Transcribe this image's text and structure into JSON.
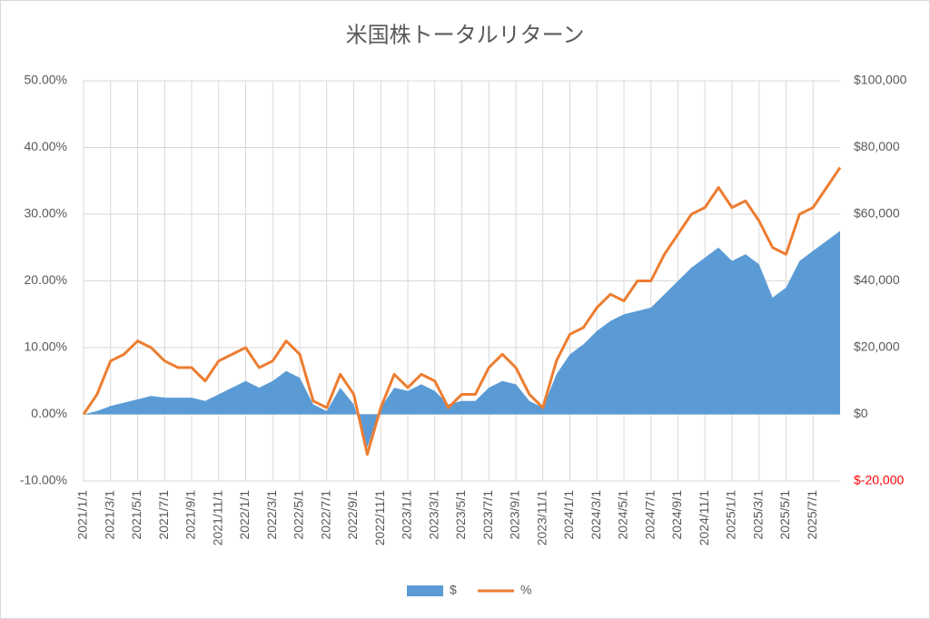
{
  "chart_data": {
    "type": "area_line",
    "title": "米国株トータルリターン",
    "categories": [
      "2021/1/1",
      null,
      "2021/3/1",
      null,
      "2021/5/1",
      null,
      "2021/7/1",
      null,
      "2021/9/1",
      null,
      "2021/11/1",
      null,
      "2022/1/1",
      null,
      "2022/3/1",
      null,
      "2022/5/1",
      null,
      "2022/7/1",
      null,
      "2022/9/1",
      null,
      "2022/11/1",
      null,
      "2023/1/1",
      null,
      "2023/3/1",
      null,
      "2023/5/1",
      null,
      "2023/7/1",
      null,
      "2023/9/1",
      null,
      "2023/11/1",
      null,
      "2024/1/1",
      null,
      "2024/3/1",
      null,
      "2024/5/1",
      null,
      "2024/7/1",
      null,
      "2024/9/1",
      null,
      "2024/11/1",
      null,
      "2025/1/1",
      null,
      "2025/3/1",
      null,
      "2025/5/1",
      null,
      "2025/7/1",
      null,
      null
    ],
    "series": [
      {
        "name": "$",
        "color": "#5b9bd5",
        "axis": "y2",
        "kind": "area",
        "values": [
          0,
          1000,
          2500,
          3500,
          4500,
          5500,
          5000,
          5000,
          5000,
          4000,
          6000,
          8000,
          10000,
          8000,
          10000,
          13000,
          11000,
          3000,
          1000,
          8000,
          3000,
          -10000,
          2000,
          8000,
          7000,
          9000,
          7000,
          3000,
          4000,
          4000,
          8000,
          10000,
          9000,
          4000,
          2000,
          12000,
          18000,
          21000,
          25000,
          28000,
          30000,
          31000,
          32000,
          36000,
          40000,
          44000,
          47000,
          50000,
          46000,
          48000,
          45000,
          35000,
          38000,
          46000,
          49000,
          52000,
          55000
        ]
      },
      {
        "name": "%",
        "color": "#ed7d31",
        "axis": "y",
        "kind": "line",
        "values": [
          0,
          3,
          8,
          9,
          11,
          10,
          8,
          7,
          7,
          5,
          8,
          9,
          10,
          7,
          8,
          11,
          9,
          2,
          1,
          6,
          3,
          -6,
          1,
          6,
          4,
          6,
          5,
          1,
          3,
          3,
          7,
          9,
          7,
          3,
          1,
          8,
          12,
          13,
          16,
          18,
          17,
          20,
          20,
          24,
          27,
          30,
          31,
          34,
          31,
          32,
          29,
          25,
          24,
          30,
          31,
          34,
          37
        ]
      }
    ],
    "ylim": [
      -10,
      50
    ],
    "yticks": [
      {
        "value": -10,
        "label": "-10.00%"
      },
      {
        "value": 0,
        "label": "0.00%"
      },
      {
        "value": 10,
        "label": "10.00%"
      },
      {
        "value": 20,
        "label": "20.00%"
      },
      {
        "value": 30,
        "label": "30.00%"
      },
      {
        "value": 40,
        "label": "40.00%"
      },
      {
        "value": 50,
        "label": "50.00%"
      }
    ],
    "y2lim": [
      -20000,
      100000
    ],
    "y2ticks": [
      {
        "value": -20000,
        "label": "$-20,000"
      },
      {
        "value": 0,
        "label": "$0"
      },
      {
        "value": 20000,
        "label": "$20,000"
      },
      {
        "value": 40000,
        "label": "$40,000"
      },
      {
        "value": 60000,
        "label": "$60,000"
      },
      {
        "value": 80000,
        "label": "$80,000"
      },
      {
        "value": 100000,
        "label": "$100,000"
      }
    ],
    "negative_tick_color": "#ff0000",
    "grid": true,
    "legend": "bottom"
  }
}
